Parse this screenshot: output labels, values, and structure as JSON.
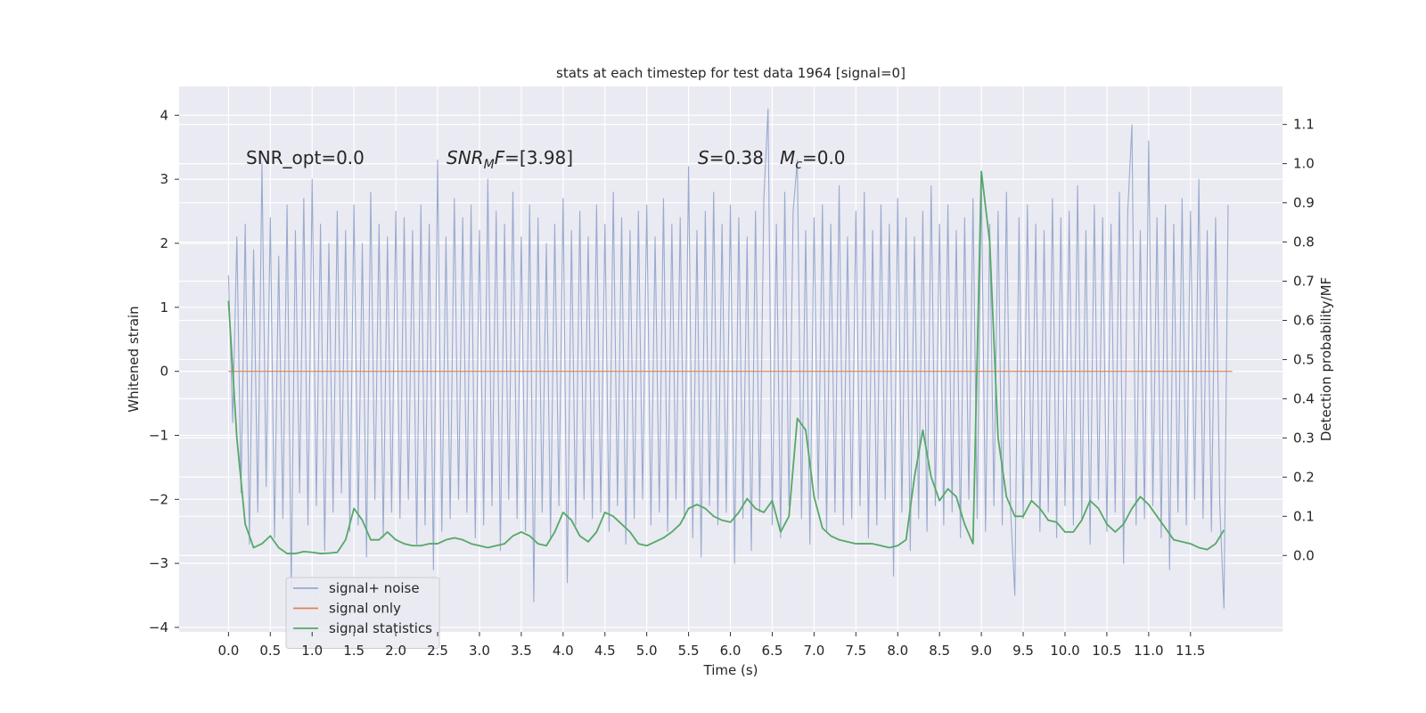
{
  "chart_data": {
    "type": "line",
    "title": "stats at each timestep for test data 1964 [signal=0]",
    "xlabel": "Time (s)",
    "ylabel": "Whitened strain",
    "y2label": "Detection probability/MF",
    "annotations": [
      "SNR_opt=0.0",
      [
        "SNR",
        "M",
        "F",
        "=[3.98]"
      ],
      [
        "S",
        "=0.38",
        "M",
        "c",
        "=0.0"
      ]
    ],
    "xlim": [
      -0.59,
      12.6
    ],
    "ylim": [
      -4.07,
      4.45
    ],
    "y2lim": [
      -0.195,
      1.197
    ],
    "xticks": [
      {
        "value": 0,
        "label": "0.0"
      },
      0.5,
      {
        "value": 1,
        "label": "1.0"
      },
      1.5,
      {
        "value": 2,
        "label": "2.0"
      },
      2.5,
      {
        "value": 3,
        "label": "3.0"
      },
      3.5,
      {
        "value": 4,
        "label": "4.0"
      },
      4.5,
      {
        "value": 5,
        "label": "5.0"
      },
      5.5,
      {
        "value": 6,
        "label": "6.0"
      },
      6.5,
      {
        "value": 7,
        "label": "7.0"
      },
      7.5,
      {
        "value": 8,
        "label": "8.0"
      },
      8.5,
      {
        "value": 9,
        "label": "9.0"
      },
      9.5,
      {
        "value": 10,
        "label": "10.0"
      },
      10.5,
      {
        "value": 11,
        "label": "11.0"
      },
      11.5
    ],
    "yticks": [
      {
        "value": -4,
        "label": "−4"
      },
      {
        "value": -3,
        "label": "−3"
      },
      {
        "value": -2,
        "label": "−2"
      },
      {
        "value": -1,
        "label": "−1"
      },
      0,
      1,
      2,
      3,
      4
    ],
    "y2ticks": [
      {
        "value": 0,
        "label": "0.0"
      },
      0.1,
      0.2,
      0.3,
      0.4,
      0.5,
      0.6,
      0.7,
      0.8,
      0.9,
      {
        "value": 1,
        "label": "1.0"
      },
      1.1
    ],
    "grid": true,
    "series": [
      {
        "name": "signal+ noise",
        "color": "#9aaacf",
        "x": [
          0,
          0.05,
          0.1,
          0.15,
          0.2,
          0.25,
          0.3,
          0.35,
          0.4,
          0.45,
          0.5,
          0.55,
          0.6,
          0.65,
          0.7,
          0.75,
          0.8,
          0.85,
          0.9,
          0.95,
          1,
          1.05,
          1.1,
          1.15,
          1.2,
          1.25,
          1.3,
          1.35,
          1.4,
          1.45,
          1.5,
          1.55,
          1.6,
          1.65,
          1.7,
          1.75,
          1.8,
          1.85,
          1.9,
          1.95,
          2,
          2.05,
          2.1,
          2.15,
          2.2,
          2.25,
          2.3,
          2.35,
          2.4,
          2.45,
          2.5,
          2.55,
          2.6,
          2.65,
          2.7,
          2.75,
          2.8,
          2.85,
          2.9,
          2.95,
          3,
          3.05,
          3.1,
          3.15,
          3.2,
          3.25,
          3.3,
          3.35,
          3.4,
          3.45,
          3.5,
          3.55,
          3.6,
          3.65,
          3.7,
          3.75,
          3.8,
          3.85,
          3.9,
          3.95,
          4,
          4.05,
          4.1,
          4.15,
          4.2,
          4.25,
          4.3,
          4.35,
          4.4,
          4.45,
          4.5,
          4.55,
          4.6,
          4.65,
          4.7,
          4.75,
          4.8,
          4.85,
          4.9,
          4.95,
          5,
          5.05,
          5.1,
          5.15,
          5.2,
          5.25,
          5.3,
          5.35,
          5.4,
          5.45,
          5.5,
          5.55,
          5.6,
          5.65,
          5.7,
          5.75,
          5.8,
          5.85,
          5.9,
          5.95,
          6,
          6.05,
          6.1,
          6.15,
          6.2,
          6.25,
          6.3,
          6.35,
          6.4,
          6.45,
          6.5,
          6.55,
          6.6,
          6.65,
          6.7,
          6.75,
          6.8,
          6.85,
          6.9,
          6.95,
          7,
          7.05,
          7.1,
          7.15,
          7.2,
          7.25,
          7.3,
          7.35,
          7.4,
          7.45,
          7.5,
          7.55,
          7.6,
          7.65,
          7.7,
          7.75,
          7.8,
          7.85,
          7.9,
          7.95,
          8,
          8.05,
          8.1,
          8.15,
          8.2,
          8.25,
          8.3,
          8.35,
          8.4,
          8.45,
          8.5,
          8.55,
          8.6,
          8.65,
          8.7,
          8.75,
          8.8,
          8.85,
          8.9,
          8.95,
          9,
          9.05,
          9.1,
          9.15,
          9.2,
          9.25,
          9.3,
          9.35,
          9.4,
          9.45,
          9.5,
          9.55,
          9.6,
          9.65,
          9.7,
          9.75,
          9.8,
          9.85,
          9.9,
          9.95,
          10,
          10.05,
          10.1,
          10.15,
          10.2,
          10.25,
          10.3,
          10.35,
          10.4,
          10.45,
          10.5,
          10.55,
          10.6,
          10.65,
          10.7,
          10.75,
          10.8,
          10.85,
          10.9,
          10.95,
          11,
          11.05,
          11.1,
          11.15,
          11.2,
          11.25,
          11.3,
          11.35,
          11.4,
          11.45,
          11.5,
          11.55,
          11.6,
          11.65,
          11.7,
          11.75,
          11.8,
          11.85,
          11.9,
          11.95
        ],
        "values": [
          1.5,
          -0.8,
          2.1,
          -1.9,
          2.3,
          -2.7,
          1.9,
          -2.2,
          3.25,
          -1.8,
          2.4,
          -2.6,
          1.8,
          -2.3,
          2.6,
          -3.4,
          2.2,
          -1.9,
          2.7,
          -2.4,
          3.0,
          -2.1,
          2.3,
          -2.8,
          2.0,
          -2.2,
          2.5,
          -1.9,
          2.2,
          -2.5,
          2.6,
          -2.4,
          2.0,
          -2.9,
          2.8,
          -2.0,
          2.3,
          -2.6,
          2.1,
          -2.2,
          2.5,
          -2.3,
          2.4,
          -2.0,
          2.2,
          -2.7,
          2.6,
          -2.4,
          2.3,
          -3.1,
          3.3,
          -2.5,
          2.1,
          -2.3,
          2.7,
          -2.0,
          2.4,
          -2.2,
          2.6,
          -2.6,
          2.2,
          -2.4,
          3.0,
          -2.1,
          2.5,
          -2.8,
          2.3,
          -2.0,
          2.8,
          -2.3,
          2.1,
          -2.5,
          2.6,
          -3.6,
          2.4,
          -2.2,
          2.0,
          -2.6,
          2.3,
          -2.1,
          2.7,
          -3.3,
          2.2,
          -2.4,
          2.5,
          -2.0,
          2.1,
          -2.3,
          2.6,
          -2.2,
          2.3,
          -2.5,
          2.8,
          -2.1,
          2.4,
          -2.7,
          2.2,
          -2.3,
          2.5,
          -2.0,
          2.6,
          -2.4,
          2.1,
          -2.2,
          2.7,
          -2.5,
          2.3,
          -2.0,
          2.4,
          -2.3,
          3.2,
          -2.6,
          2.2,
          -2.9,
          2.5,
          -2.1,
          2.8,
          -2.4,
          2.3,
          -2.2,
          2.6,
          -3.0,
          2.4,
          -2.3,
          2.1,
          -2.8,
          2.5,
          -2.2,
          2.7,
          4.1,
          -2.4,
          2.3,
          -2.6,
          2.8,
          -2.1,
          2.5,
          3.3,
          -2.3,
          2.2,
          -2.7,
          2.4,
          -2.0,
          2.6,
          -2.5,
          2.3,
          -2.2,
          2.9,
          -2.4,
          2.1,
          -2.3,
          2.5,
          -2.1,
          2.8,
          -2.6,
          2.2,
          -2.4,
          2.6,
          -2.0,
          2.3,
          -3.2,
          2.7,
          -2.2,
          2.4,
          -2.8,
          2.1,
          -2.3,
          2.5,
          -2.5,
          2.9,
          -2.1,
          2.3,
          -2.4,
          2.6,
          -2.2,
          2.2,
          -2.6,
          2.4,
          -2.0,
          2.7,
          -2.3,
          3.0,
          -2.5,
          2.3,
          -2.1,
          2.5,
          -2.4,
          2.8,
          -2.2,
          -3.5,
          2.4,
          -2.3,
          2.6,
          -2.0,
          2.3,
          -2.5,
          2.2,
          -2.2,
          2.7,
          -2.6,
          2.4,
          -2.1,
          2.5,
          -2.4,
          2.9,
          -2.3,
          2.2,
          -2.7,
          2.6,
          -2.0,
          2.4,
          -2.5,
          2.3,
          -2.2,
          2.8,
          -3.0,
          2.5,
          3.85,
          -2.4,
          2.2,
          -2.3,
          3.6,
          -2.1,
          2.4,
          -2.6,
          2.6,
          -3.1,
          2.3,
          -2.2,
          2.7,
          -2.4,
          2.5,
          -2.0,
          3.0,
          -2.3,
          2.2,
          -2.5,
          2.4,
          -2.1,
          -3.7,
          2.6
        ]
      },
      {
        "name": "signal only",
        "color": "#dd8452",
        "x": [
          0,
          12
        ],
        "values": [
          0,
          0
        ]
      },
      {
        "name": "signal statistics",
        "color": "#55a868",
        "axis": "y2",
        "x": [
          0,
          0.1,
          0.2,
          0.3,
          0.4,
          0.5,
          0.6,
          0.7,
          0.8,
          0.9,
          1,
          1.1,
          1.2,
          1.3,
          1.4,
          1.5,
          1.6,
          1.7,
          1.8,
          1.9,
          2,
          2.1,
          2.2,
          2.3,
          2.4,
          2.5,
          2.6,
          2.7,
          2.8,
          2.9,
          3,
          3.1,
          3.2,
          3.3,
          3.4,
          3.5,
          3.6,
          3.7,
          3.8,
          3.9,
          4,
          4.1,
          4.2,
          4.3,
          4.4,
          4.5,
          4.6,
          4.7,
          4.8,
          4.9,
          5,
          5.1,
          5.2,
          5.3,
          5.4,
          5.5,
          5.6,
          5.7,
          5.8,
          5.9,
          6,
          6.1,
          6.2,
          6.3,
          6.4,
          6.5,
          6.6,
          6.7,
          6.8,
          6.9,
          7,
          7.1,
          7.2,
          7.3,
          7.4,
          7.5,
          7.6,
          7.7,
          7.8,
          7.9,
          8,
          8.1,
          8.2,
          8.3,
          8.4,
          8.5,
          8.6,
          8.7,
          8.8,
          8.9,
          9,
          9.1,
          9.2,
          9.3,
          9.4,
          9.5,
          9.6,
          9.7,
          9.8,
          9.9,
          10,
          10.1,
          10.2,
          10.3,
          10.4,
          10.5,
          10.6,
          10.7,
          10.8,
          10.9,
          11,
          11.1,
          11.2,
          11.3,
          11.4,
          11.5,
          11.6,
          11.7,
          11.8,
          11.9
        ],
        "values": [
          0.65,
          0.3,
          0.08,
          0.02,
          0.03,
          0.05,
          0.02,
          0.005,
          0.005,
          0.01,
          0.008,
          0.005,
          0.006,
          0.008,
          0.04,
          0.12,
          0.09,
          0.04,
          0.04,
          0.06,
          0.04,
          0.03,
          0.025,
          0.025,
          0.03,
          0.03,
          0.04,
          0.045,
          0.04,
          0.03,
          0.025,
          0.02,
          0.025,
          0.03,
          0.05,
          0.06,
          0.05,
          0.03,
          0.025,
          0.06,
          0.11,
          0.09,
          0.05,
          0.035,
          0.06,
          0.11,
          0.1,
          0.08,
          0.06,
          0.03,
          0.025,
          0.035,
          0.045,
          0.06,
          0.08,
          0.12,
          0.13,
          0.12,
          0.1,
          0.09,
          0.085,
          0.11,
          0.145,
          0.12,
          0.11,
          0.14,
          0.06,
          0.1,
          0.35,
          0.32,
          0.15,
          0.07,
          0.05,
          0.04,
          0.035,
          0.03,
          0.03,
          0.03,
          0.025,
          0.02,
          0.025,
          0.04,
          0.2,
          0.32,
          0.2,
          0.14,
          0.17,
          0.15,
          0.08,
          0.03,
          0.98,
          0.8,
          0.3,
          0.15,
          0.1,
          0.1,
          0.14,
          0.12,
          0.09,
          0.085,
          0.06,
          0.06,
          0.09,
          0.14,
          0.12,
          0.08,
          0.06,
          0.08,
          0.12,
          0.15,
          0.13,
          0.1,
          0.07,
          0.04,
          0.035,
          0.03,
          0.02,
          0.015,
          0.03,
          0.065
        ]
      }
    ]
  }
}
